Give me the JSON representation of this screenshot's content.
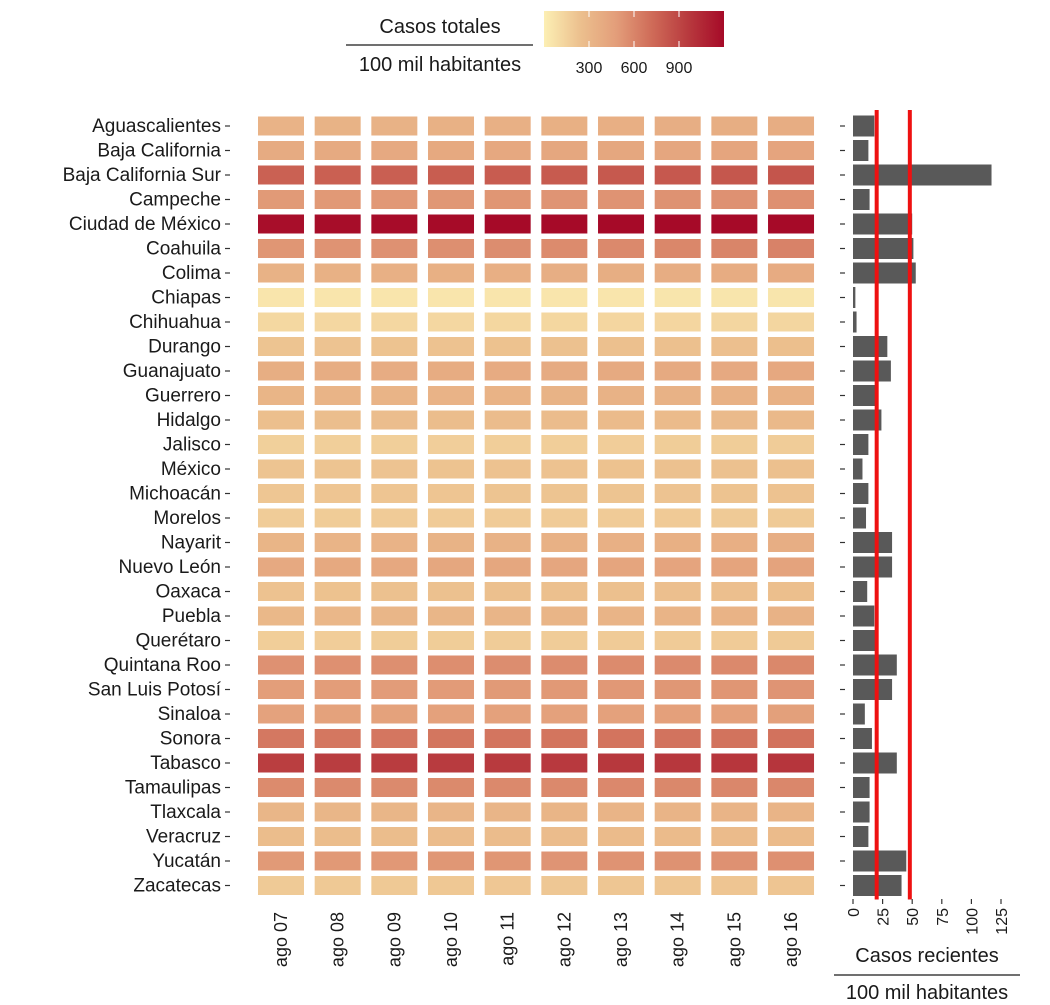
{
  "chart_data": {
    "type": "heatmap",
    "legend": {
      "title_numerator": "Casos totales",
      "title_denominator": "100 mil habitantes",
      "ticks": [
        300,
        600,
        900
      ],
      "range": [
        0,
        1200
      ],
      "colors": [
        "#fcefb4",
        "#ecc08e",
        "#e39e7a",
        "#cf6b58",
        "#b83a3e",
        "#a60a28"
      ],
      "placement": "top"
    },
    "heatmap": {
      "dates": [
        "ago 07",
        "ago 08",
        "ago 09",
        "ago 10",
        "ago 11",
        "ago 12",
        "ago 13",
        "ago 14",
        "ago 15",
        "ago 16"
      ],
      "states": [
        "Aguascalientes",
        "Baja California",
        "Baja California Sur",
        "Campeche",
        "Ciudad de México",
        "Coahuila",
        "Colima",
        "Chiapas",
        "Chihuahua",
        "Durango",
        "Guanajuato",
        "Guerrero",
        "Hidalgo",
        "Jalisco",
        "México",
        "Michoacán",
        "Morelos",
        "Nayarit",
        "Nuevo León",
        "Oaxaca",
        "Puebla",
        "Querétaro",
        "Quintana Roo",
        "San Luis Potosí",
        "Sinaloa",
        "Sonora",
        "Tabasco",
        "Tamaulipas",
        "Tlaxcala",
        "Veracruz",
        "Yucatán",
        "Zacatecas"
      ],
      "values": [
        [
          330,
          335,
          340,
          345,
          350,
          355,
          360,
          365,
          370,
          375
        ],
        [
          390,
          395,
          400,
          405,
          410,
          415,
          420,
          425,
          430,
          435
        ],
        [
          770,
          775,
          780,
          790,
          795,
          800,
          810,
          815,
          820,
          830
        ],
        [
          500,
          505,
          510,
          515,
          520,
          525,
          530,
          535,
          540,
          545
        ],
        [
          1180,
          1185,
          1190,
          1195,
          1200,
          1205,
          1210,
          1215,
          1220,
          1225
        ],
        [
          520,
          530,
          540,
          550,
          560,
          570,
          580,
          590,
          600,
          610
        ],
        [
          340,
          345,
          350,
          355,
          360,
          365,
          370,
          375,
          380,
          385
        ],
        [
          50,
          50,
          51,
          51,
          52,
          52,
          52,
          53,
          53,
          53
        ],
        [
          120,
          121,
          122,
          123,
          124,
          125,
          126,
          127,
          128,
          129
        ],
        [
          220,
          223,
          226,
          229,
          232,
          235,
          238,
          241,
          244,
          247
        ],
        [
          370,
          374,
          378,
          382,
          386,
          390,
          394,
          398,
          402,
          406
        ],
        [
          320,
          323,
          326,
          329,
          332,
          335,
          338,
          341,
          344,
          347
        ],
        [
          250,
          254,
          258,
          262,
          266,
          270,
          274,
          278,
          282,
          286
        ],
        [
          160,
          162,
          164,
          166,
          168,
          170,
          172,
          174,
          176,
          178
        ],
        [
          220,
          222,
          224,
          226,
          228,
          230,
          232,
          234,
          236,
          238
        ],
        [
          210,
          212,
          214,
          216,
          218,
          220,
          222,
          224,
          226,
          228
        ],
        [
          180,
          181,
          182,
          183,
          184,
          185,
          186,
          187,
          188,
          189
        ],
        [
          320,
          325,
          330,
          335,
          340,
          345,
          350,
          355,
          360,
          365
        ],
        [
          400,
          405,
          410,
          415,
          420,
          425,
          430,
          435,
          440,
          445
        ],
        [
          230,
          232,
          234,
          236,
          238,
          240,
          242,
          244,
          246,
          248
        ],
        [
          300,
          304,
          308,
          312,
          316,
          320,
          324,
          328,
          332,
          336
        ],
        [
          170,
          172,
          174,
          176,
          178,
          180,
          182,
          184,
          186,
          188
        ],
        [
          540,
          545,
          550,
          555,
          560,
          565,
          570,
          575,
          580,
          585
        ],
        [
          480,
          485,
          490,
          495,
          500,
          505,
          510,
          515,
          520,
          525
        ],
        [
          450,
          452,
          454,
          456,
          458,
          460,
          462,
          464,
          466,
          468
        ],
        [
          660,
          663,
          666,
          669,
          672,
          675,
          678,
          681,
          684,
          687
        ],
        [
          940,
          945,
          950,
          955,
          960,
          965,
          970,
          975,
          980,
          985
        ],
        [
          570,
          572,
          574,
          576,
          578,
          580,
          582,
          584,
          586,
          588
        ],
        [
          310,
          312,
          314,
          316,
          318,
          320,
          322,
          324,
          326,
          328
        ],
        [
          260,
          262,
          264,
          266,
          268,
          270,
          272,
          274,
          276,
          278
        ],
        [
          500,
          505,
          510,
          515,
          520,
          525,
          530,
          535,
          540,
          545
        ],
        [
          190,
          193,
          196,
          199,
          202,
          205,
          208,
          211,
          214,
          217
        ]
      ]
    },
    "bars": {
      "type": "bar",
      "orientation": "horizontal",
      "values": [
        18,
        13,
        117,
        14,
        50,
        51,
        53,
        2,
        3,
        29,
        32,
        19,
        24,
        13,
        8,
        13,
        11,
        33,
        33,
        12,
        18,
        19,
        37,
        33,
        10,
        16,
        37,
        14,
        14,
        13,
        45,
        41
      ],
      "ticks": [
        0,
        25,
        50,
        75,
        100,
        125
      ],
      "xlim": [
        0,
        130
      ],
      "xlabel_numerator": "Casos recientes",
      "xlabel_denominator": "100 mil habitantes",
      "reference_lines": [
        20,
        48
      ],
      "bar_color": "#595959",
      "line_color": "#ee1111"
    }
  }
}
